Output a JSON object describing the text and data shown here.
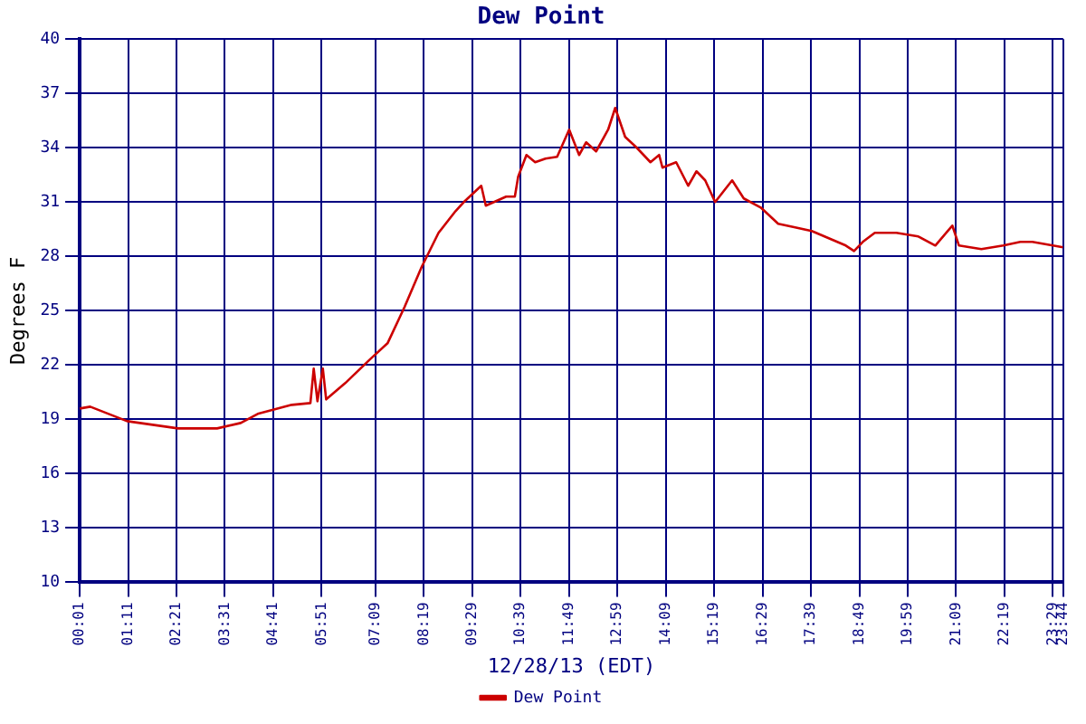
{
  "chart_data": {
    "type": "line",
    "title": "Dew Point",
    "xlabel": "12/28/13 (EDT)",
    "ylabel": "Degrees F",
    "x": [
      0.02,
      0.27,
      1.16,
      2.39,
      3.33,
      3.9,
      4.31,
      5.13,
      5.58,
      5.66,
      5.75,
      5.88,
      5.96,
      6.42,
      7.01,
      7.44,
      7.85,
      8.26,
      8.67,
      9.08,
      9.28,
      9.7,
      9.81,
      10.3,
      10.51,
      10.59,
      10.79,
      11.0,
      11.25,
      11.53,
      11.82,
      12.06,
      12.23,
      12.47,
      12.76,
      12.93,
      13.17,
      13.45,
      13.78,
      13.99,
      14.07,
      14.4,
      14.69,
      14.89,
      15.1,
      15.34,
      15.75,
      16.03,
      16.44,
      16.86,
      17.27,
      17.67,
      18.49,
      18.69,
      18.9,
      19.19,
      19.71,
      20.24,
      20.65,
      21.06,
      21.22,
      21.76,
      22.29,
      22.7,
      22.99,
      23.73
    ],
    "series": [
      {
        "name": "Dew Point",
        "color": "#cc0000",
        "values": [
          19.6,
          19.7,
          18.9,
          18.5,
          18.5,
          18.8,
          19.3,
          19.8,
          19.9,
          21.8,
          20.0,
          21.8,
          20.1,
          21.0,
          22.3,
          23.2,
          25.2,
          27.4,
          29.3,
          30.5,
          31.0,
          31.9,
          30.8,
          31.3,
          31.3,
          32.4,
          33.6,
          33.2,
          33.4,
          33.5,
          35.0,
          33.6,
          34.3,
          33.8,
          35.0,
          36.2,
          34.6,
          34.0,
          33.2,
          33.6,
          32.9,
          33.2,
          31.9,
          32.7,
          32.2,
          31.0,
          32.2,
          31.2,
          30.7,
          29.8,
          29.6,
          29.4,
          28.6,
          28.3,
          28.8,
          29.3,
          29.3,
          29.1,
          28.6,
          29.7,
          28.6,
          28.4,
          28.6,
          28.8,
          28.8,
          28.5
        ]
      }
    ],
    "xlim": [
      0.0167,
      23.7333
    ],
    "xticks": [
      {
        "value": 0.0167,
        "label": "00:01"
      },
      {
        "value": 1.1833,
        "label": "01:11"
      },
      {
        "value": 2.35,
        "label": "02:21"
      },
      {
        "value": 3.5167,
        "label": "03:31"
      },
      {
        "value": 4.6833,
        "label": "04:41"
      },
      {
        "value": 5.85,
        "label": "05:51"
      },
      {
        "value": 7.15,
        "label": "07:09"
      },
      {
        "value": 8.3167,
        "label": "08:19"
      },
      {
        "value": 9.4833,
        "label": "09:29"
      },
      {
        "value": 10.65,
        "label": "10:39"
      },
      {
        "value": 11.8167,
        "label": "11:49"
      },
      {
        "value": 12.9833,
        "label": "12:59"
      },
      {
        "value": 14.15,
        "label": "14:09"
      },
      {
        "value": 15.3167,
        "label": "15:19"
      },
      {
        "value": 16.4833,
        "label": "16:29"
      },
      {
        "value": 17.65,
        "label": "17:39"
      },
      {
        "value": 18.8167,
        "label": "18:49"
      },
      {
        "value": 19.9833,
        "label": "19:59"
      },
      {
        "value": 21.15,
        "label": "21:09"
      },
      {
        "value": 22.3167,
        "label": "22:19"
      },
      {
        "value": 23.4833,
        "label": "23:29"
      },
      {
        "value": 23.7333,
        "label": "23:44"
      }
    ],
    "ylim": [
      10,
      40
    ],
    "yticks": [
      10,
      13,
      16,
      19,
      22,
      25,
      28,
      31,
      34,
      37,
      40
    ],
    "grid": true,
    "legend": "bottom",
    "marker": "none",
    "line_style": "solid"
  }
}
